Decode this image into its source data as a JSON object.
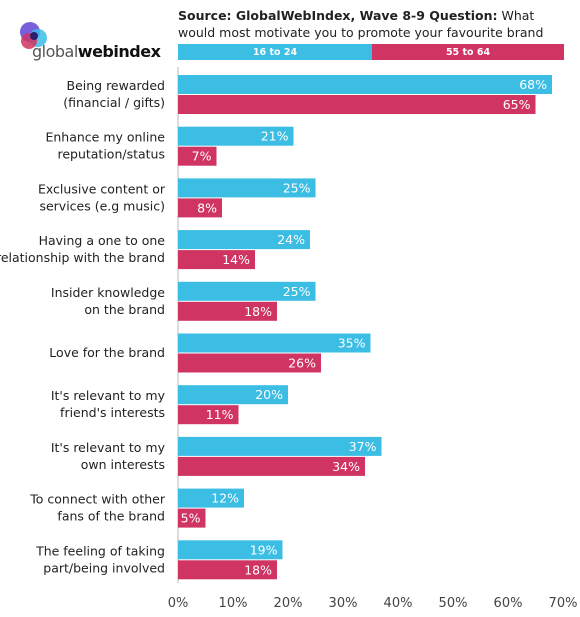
{
  "brand": {
    "logo_text_light": "global",
    "logo_text_bold": "webindex"
  },
  "header": {
    "source_bold": "Source: GlobalWebIndex, Wave 8-9 Question:",
    "source_rest": " What would most motivate you to promote your favourite brand online? Base = Total"
  },
  "colors": {
    "series_a": "#3bbde4",
    "series_b": "#cf3462"
  },
  "chart_data": {
    "type": "bar",
    "orientation": "horizontal",
    "categories": [
      [
        "Being rewarded",
        "(financial / gifts)"
      ],
      [
        "Enhance my online",
        "reputation/status"
      ],
      [
        "Exclusive content or",
        "services (e.g music)"
      ],
      [
        "Having a one to one",
        "relationship with the brand"
      ],
      [
        "Insider knowledge",
        "on the brand"
      ],
      [
        "Love for the brand"
      ],
      [
        "It's relevant to my",
        "friend's interests"
      ],
      [
        "It's relevant to my",
        "own interests"
      ],
      [
        "To connect with other",
        "fans of the brand"
      ],
      [
        "The feeling of taking",
        "part/being involved"
      ]
    ],
    "series": [
      {
        "name": "16 to 24",
        "values": [
          68,
          21,
          25,
          24,
          25,
          35,
          20,
          37,
          12,
          19
        ]
      },
      {
        "name": "55 to 64",
        "values": [
          65,
          7,
          8,
          14,
          18,
          26,
          11,
          34,
          5,
          18
        ]
      }
    ],
    "xlim": [
      0,
      70
    ],
    "ticks": [
      "0%",
      "10%",
      "20%",
      "30%",
      "40%",
      "50%",
      "60%",
      "70%"
    ],
    "value_suffix": "%",
    "legend_position": "top"
  }
}
